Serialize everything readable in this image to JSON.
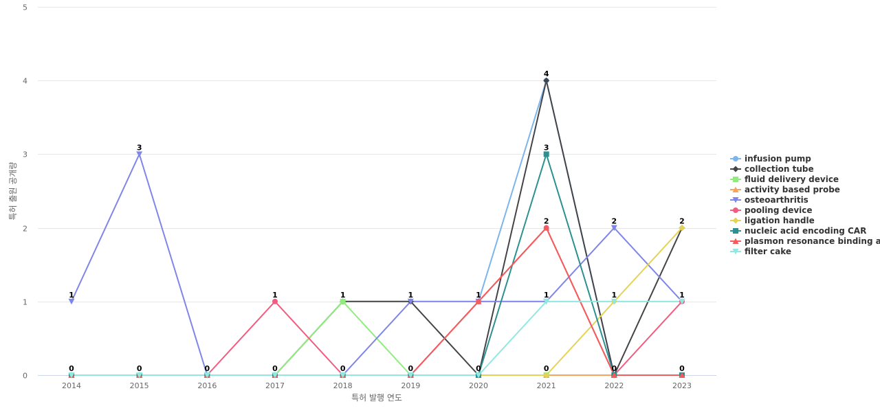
{
  "chart_data": {
    "type": "line",
    "xlabel": "특허 발행 연도",
    "ylabel": "특허 출원 공개량",
    "ylim": [
      0,
      5
    ],
    "yticks": [
      0,
      1,
      2,
      3,
      4,
      5
    ],
    "grid": true,
    "legend_position": "right",
    "categories": [
      "2014",
      "2015",
      "2016",
      "2017",
      "2018",
      "2019",
      "2020",
      "2021",
      "2022",
      "2023"
    ],
    "series": [
      {
        "name": "infusion pump",
        "color": "#7cb5ec",
        "marker": "circle",
        "values": [
          0,
          0,
          0,
          0,
          0,
          0,
          1,
          4,
          0,
          0
        ]
      },
      {
        "name": "collection tube",
        "color": "#434348",
        "marker": "diamond",
        "values": [
          0,
          0,
          0,
          0,
          1,
          1,
          0,
          4,
          0,
          2
        ]
      },
      {
        "name": "fluid delivery device",
        "color": "#90ed7d",
        "marker": "square",
        "values": [
          0,
          0,
          0,
          0,
          1,
          0,
          0,
          0,
          0,
          0
        ]
      },
      {
        "name": "activity based probe",
        "color": "#f7a35c",
        "marker": "triangle",
        "values": [
          0,
          0,
          0,
          0,
          0,
          0,
          0,
          0,
          0,
          0
        ]
      },
      {
        "name": "osteoarthritis",
        "color": "#8085e9",
        "marker": "triangle-down",
        "values": [
          1,
          3,
          0,
          0,
          0,
          1,
          1,
          1,
          2,
          1
        ]
      },
      {
        "name": "pooling device",
        "color": "#f15c80",
        "marker": "circle",
        "values": [
          0,
          0,
          0,
          1,
          0,
          0,
          1,
          2,
          0,
          1
        ]
      },
      {
        "name": "ligation handle",
        "color": "#e4d354",
        "marker": "diamond",
        "values": [
          0,
          0,
          0,
          0,
          0,
          0,
          0,
          0,
          1,
          2
        ]
      },
      {
        "name": "nucleic acid encoding CAR",
        "color": "#2b908f",
        "marker": "square",
        "values": [
          0,
          0,
          0,
          0,
          0,
          0,
          0,
          3,
          0,
          0
        ]
      },
      {
        "name": "plasmon resonance binding a...",
        "color": "#f45b5b",
        "marker": "triangle",
        "values": [
          0,
          0,
          0,
          0,
          0,
          0,
          1,
          2,
          0,
          0
        ]
      },
      {
        "name": "filter cake",
        "color": "#91e8e1",
        "marker": "triangle-down",
        "values": [
          0,
          0,
          0,
          0,
          0,
          0,
          0,
          1,
          1,
          1
        ]
      }
    ],
    "data_labels": [
      {
        "x": "2014",
        "value": 1
      },
      {
        "x": "2014",
        "value": 0
      },
      {
        "x": "2015",
        "value": 3
      },
      {
        "x": "2015",
        "value": 0
      },
      {
        "x": "2016",
        "value": 0
      },
      {
        "x": "2017",
        "value": 1
      },
      {
        "x": "2017",
        "value": 0
      },
      {
        "x": "2018",
        "value": 1
      },
      {
        "x": "2018",
        "value": 0
      },
      {
        "x": "2019",
        "value": 1
      },
      {
        "x": "2019",
        "value": 0
      },
      {
        "x": "2020",
        "value": 1
      },
      {
        "x": "2020",
        "value": 0
      },
      {
        "x": "2021",
        "value": 4
      },
      {
        "x": "2021",
        "value": 3
      },
      {
        "x": "2021",
        "value": 2
      },
      {
        "x": "2021",
        "value": 1
      },
      {
        "x": "2021",
        "value": 0
      },
      {
        "x": "2022",
        "value": 2
      },
      {
        "x": "2022",
        "value": 1
      },
      {
        "x": "2022",
        "value": 0
      },
      {
        "x": "2023",
        "value": 2
      },
      {
        "x": "2023",
        "value": 1
      },
      {
        "x": "2023",
        "value": 0
      }
    ]
  }
}
